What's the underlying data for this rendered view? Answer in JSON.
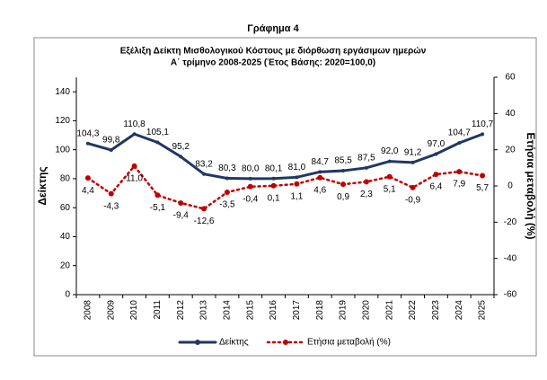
{
  "chart_data": {
    "type": "line",
    "header": "Γράφημα 4",
    "title": "Εξέλιξη Δείκτη Μισθολογικού  Κόστους με διόρθωση εργάσιμων ημερών",
    "subtitle": "Α΄ τρίμηνο 2008-2025 (Έτος Βάσης: 2020=100,0)",
    "y_label": "Δείκτης",
    "y2_label": "Ετήσια μεταβολή (%)",
    "categories": [
      "2008",
      "2009",
      "2010",
      "2011",
      "2012",
      "2013",
      "2014",
      "2015",
      "2016",
      "2017",
      "2018",
      "2019",
      "2020",
      "2021",
      "2022",
      "2023",
      "2024",
      "2025"
    ],
    "series": [
      {
        "name": "Δείκτης",
        "color": "#1f3864",
        "values": [
          104.3,
          99.8,
          110.8,
          105.1,
          95.2,
          83.2,
          80.3,
          80.0,
          80.1,
          81.0,
          84.7,
          85.5,
          87.5,
          92.0,
          91.2,
          97.0,
          104.7,
          110.7
        ],
        "value_labels": [
          "104,3",
          "99,8",
          "110,8",
          "105,1",
          "95,2",
          "83,2",
          "80,3",
          "80,0",
          "80,1",
          "81,0",
          "84,7",
          "85,5",
          "87,5",
          "92,0",
          "91,2",
          "97,0",
          "104,7",
          "110,7"
        ]
      },
      {
        "name": "Ετήσια μεταβολή (%)",
        "color": "#c00000",
        "axis": "y2",
        "values": [
          4.4,
          -4.3,
          11.0,
          -5.1,
          -9.4,
          -12.6,
          -3.5,
          -0.4,
          0.1,
          1.1,
          4.6,
          0.9,
          2.3,
          5.1,
          -0.9,
          6.4,
          7.9,
          5.7
        ],
        "value_labels": [
          "4,4",
          "-4,3",
          "11,0",
          "-5,1",
          "-9,4",
          "-12,6",
          "-3,5",
          "-0,4",
          "0,1",
          "1,1",
          "4,6",
          "0,9",
          "2,3",
          "5,1",
          "-0,9",
          "6,4",
          "7,9",
          "5,7"
        ]
      }
    ],
    "ylim": [
      0,
      150
    ],
    "yticks": [
      0,
      20,
      40,
      60,
      80,
      100,
      120,
      140
    ],
    "y2lim": [
      -60,
      60
    ],
    "y2ticks": [
      -60,
      -40,
      -20,
      0,
      20,
      40,
      60
    ]
  }
}
